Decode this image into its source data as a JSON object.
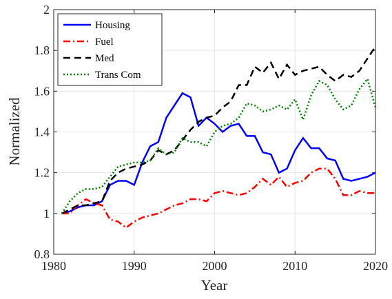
{
  "chart_data": {
    "type": "line",
    "xlabel": "Year",
    "ylabel": "Normalized",
    "x": [
      1981,
      1982,
      1983,
      1984,
      1985,
      1986,
      1987,
      1988,
      1989,
      1990,
      1991,
      1992,
      1993,
      1994,
      1995,
      1996,
      1997,
      1998,
      1999,
      2000,
      2001,
      2002,
      2003,
      2004,
      2005,
      2006,
      2007,
      2008,
      2009,
      2010,
      2011,
      2012,
      2013,
      2014,
      2015,
      2016,
      2017,
      2018,
      2019,
      2020
    ],
    "series": [
      {
        "name": "Housing",
        "color": "#0000ff",
        "dash": "solid",
        "values": [
          1.0,
          1.01,
          1.03,
          1.04,
          1.04,
          1.06,
          1.14,
          1.16,
          1.16,
          1.14,
          1.25,
          1.33,
          1.35,
          1.47,
          1.53,
          1.59,
          1.57,
          1.43,
          1.47,
          1.44,
          1.4,
          1.43,
          1.44,
          1.38,
          1.38,
          1.3,
          1.29,
          1.2,
          1.22,
          1.31,
          1.37,
          1.32,
          1.32,
          1.27,
          1.26,
          1.17,
          1.16,
          1.17,
          1.18,
          1.2
        ]
      },
      {
        "name": "Fuel",
        "color": "#ff0000",
        "dash": "dashdot",
        "values": [
          1.0,
          1.0,
          1.04,
          1.07,
          1.05,
          1.04,
          0.97,
          0.96,
          0.93,
          0.96,
          0.98,
          0.99,
          1.0,
          1.02,
          1.04,
          1.05,
          1.07,
          1.07,
          1.06,
          1.1,
          1.11,
          1.1,
          1.09,
          1.1,
          1.13,
          1.17,
          1.14,
          1.18,
          1.13,
          1.15,
          1.16,
          1.2,
          1.22,
          1.22,
          1.17,
          1.09,
          1.09,
          1.11,
          1.1,
          1.1
        ]
      },
      {
        "name": "Med",
        "color": "#000000",
        "dash": "dashed",
        "values": [
          1.0,
          1.02,
          1.04,
          1.04,
          1.05,
          1.06,
          1.16,
          1.2,
          1.22,
          1.23,
          1.24,
          1.26,
          1.31,
          1.29,
          1.31,
          1.36,
          1.41,
          1.45,
          1.47,
          1.48,
          1.52,
          1.55,
          1.63,
          1.63,
          1.72,
          1.69,
          1.74,
          1.66,
          1.73,
          1.68,
          1.7,
          1.71,
          1.72,
          1.68,
          1.65,
          1.68,
          1.67,
          1.7,
          1.76,
          1.82
        ]
      },
      {
        "name": "Trans Com",
        "color": "#008000",
        "dash": "dotted",
        "values": [
          1.0,
          1.06,
          1.1,
          1.12,
          1.12,
          1.13,
          1.18,
          1.23,
          1.24,
          1.25,
          1.25,
          1.26,
          1.32,
          1.29,
          1.3,
          1.37,
          1.35,
          1.35,
          1.33,
          1.4,
          1.43,
          1.44,
          1.47,
          1.54,
          1.53,
          1.5,
          1.51,
          1.53,
          1.51,
          1.56,
          1.46,
          1.58,
          1.65,
          1.63,
          1.56,
          1.51,
          1.53,
          1.61,
          1.66,
          1.52
        ]
      }
    ],
    "xlim": [
      1980,
      2020
    ],
    "xticks": [
      1980,
      1990,
      2000,
      2010,
      2020
    ],
    "ylim": [
      0.8,
      2
    ],
    "yticks": [
      0.8,
      1,
      1.2,
      1.4,
      1.6,
      1.8,
      2
    ],
    "grid": true,
    "legend": "upper-left"
  }
}
